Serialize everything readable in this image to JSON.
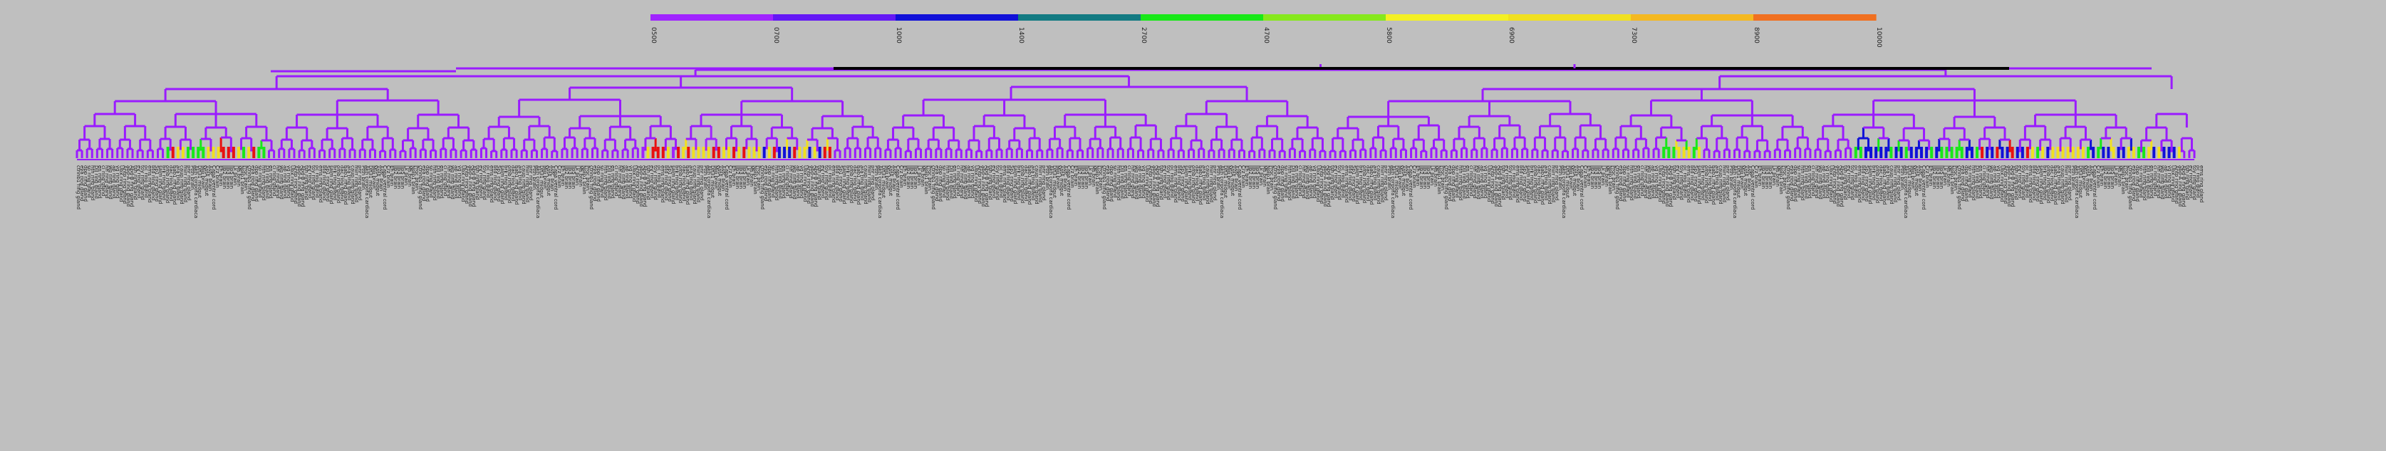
{
  "figure": {
    "type": "heatmap-dendrogram",
    "background": "#bfbfbf",
    "root_link_color": "#000000",
    "default_link_color": "#9a1bff"
  },
  "colorbar": {
    "tick_labels": [
      "0500",
      "0700",
      "1000",
      "1400",
      "2700",
      "4700",
      "5800",
      "6900",
      "7300",
      "8900",
      "10000"
    ],
    "segment_colors": [
      "#a024ff",
      "#6418f5",
      "#1010d8",
      "#127a82",
      "#18e818",
      "#86e81c",
      "#f4f024",
      "#f0e020",
      "#f4b820",
      "#f07020"
    ]
  },
  "leaf_labels": {
    "item_labels": [
      "ctnnb1 ring gland",
      "eya ring gland",
      "dpp ring gland",
      "so ring gland",
      "hth ring gland",
      "Dll ring gland",
      "en ring gland",
      "ci ring gland",
      "hh ring gland",
      "wg ring gland",
      "ap ring gland",
      "vg ring gland",
      "Ubx ring gland",
      "Antp ring gland",
      "abd-A ring gland",
      "Abd-B ring gland",
      "tsh ring gland",
      "ey ring gland",
      "toy ring gland",
      "oc ring gland",
      "ems ring gland",
      "btd ring gland",
      "Sp1 ring gland",
      "salm ring gland",
      "brk ring gland",
      "omb ring gland",
      "dac ring gland",
      "bab1 ring gland",
      "ara ring gland",
      "caup ring gland",
      "mirr ring gland",
      "pnr ring gland",
      "Ptth brain",
      "Akh corpora cardiaca",
      "Dh31 midgut",
      "Mip brain",
      "AstA midgut",
      "AstC brain",
      "Capa ventral cord",
      "Crz brain",
      "Eh brain",
      "Ilp2 brain",
      "Ilp3 brain",
      "Ilp5 brain",
      "Lk brain",
      "Ms brain",
      "Nplp1 brain",
      "Proc brain"
    ]
  }
}
